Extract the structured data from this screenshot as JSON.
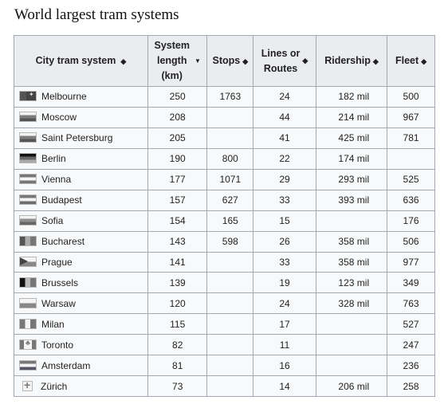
{
  "page": {
    "title": "World largest tram systems"
  },
  "table": {
    "headers": {
      "city": "City tram system",
      "length_line1": "System",
      "length_line2": "length",
      "length_line3": "(km)",
      "stops": "Stops",
      "lines_line1": "Lines or",
      "lines_line2": "Routes",
      "ridership": "Ridership",
      "fleet": "Fleet"
    },
    "sort_icon": "sort-both-icon",
    "sort_icon_active": "sort-down-icon",
    "rows": [
      {
        "flag": "australia-flag-icon",
        "city": "Melbourne",
        "length": "250",
        "stops": "1763",
        "lines": "24",
        "ridership": "182 mil",
        "fleet": "500"
      },
      {
        "flag": "russia-flag-icon",
        "city": "Moscow",
        "length": "208",
        "stops": "",
        "lines": "44",
        "ridership": "214 mil",
        "fleet": "967"
      },
      {
        "flag": "russia-flag-icon",
        "city": "Saint Petersburg",
        "length": "205",
        "stops": "",
        "lines": "41",
        "ridership": "425 mil",
        "fleet": "781"
      },
      {
        "flag": "germany-flag-icon",
        "city": "Berlin",
        "length": "190",
        "stops": "800",
        "lines": "22",
        "ridership": "174 mil",
        "fleet": ""
      },
      {
        "flag": "austria-flag-icon",
        "city": "Vienna",
        "length": "177",
        "stops": "1071",
        "lines": "29",
        "ridership": "293 mil",
        "fleet": "525"
      },
      {
        "flag": "hungary-flag-icon",
        "city": "Budapest",
        "length": "157",
        "stops": "627",
        "lines": "33",
        "ridership": "393 mil",
        "fleet": "636"
      },
      {
        "flag": "bulgaria-flag-icon",
        "city": "Sofia",
        "length": "154",
        "stops": "165",
        "lines": "15",
        "ridership": "",
        "fleet": "176"
      },
      {
        "flag": "romania-flag-icon",
        "city": "Bucharest",
        "length": "143",
        "stops": "598",
        "lines": "26",
        "ridership": "358 mil",
        "fleet": "506"
      },
      {
        "flag": "czech-flag-icon",
        "city": "Prague",
        "length": "141",
        "stops": "",
        "lines": "33",
        "ridership": "358 mil",
        "fleet": "977"
      },
      {
        "flag": "belgium-flag-icon",
        "city": "Brussels",
        "length": "139",
        "stops": "",
        "lines": "19",
        "ridership": "123 mil",
        "fleet": "349"
      },
      {
        "flag": "poland-flag-icon",
        "city": "Warsaw",
        "length": "120",
        "stops": "",
        "lines": "24",
        "ridership": "328 mil",
        "fleet": "763"
      },
      {
        "flag": "italy-flag-icon",
        "city": "Milan",
        "length": "115",
        "stops": "",
        "lines": "17",
        "ridership": "",
        "fleet": "527"
      },
      {
        "flag": "canada-flag-icon",
        "city": "Toronto",
        "length": "82",
        "stops": "",
        "lines": "11",
        "ridership": "",
        "fleet": "247"
      },
      {
        "flag": "netherlands-flag-icon",
        "city": "Amsterdam",
        "length": "81",
        "stops": "",
        "lines": "16",
        "ridership": "",
        "fleet": "236"
      },
      {
        "flag": "switzerland-flag-icon",
        "city": "Zürich",
        "length": "73",
        "stops": "",
        "lines": "14",
        "ridership": "206 mil",
        "fleet": "258"
      }
    ]
  }
}
